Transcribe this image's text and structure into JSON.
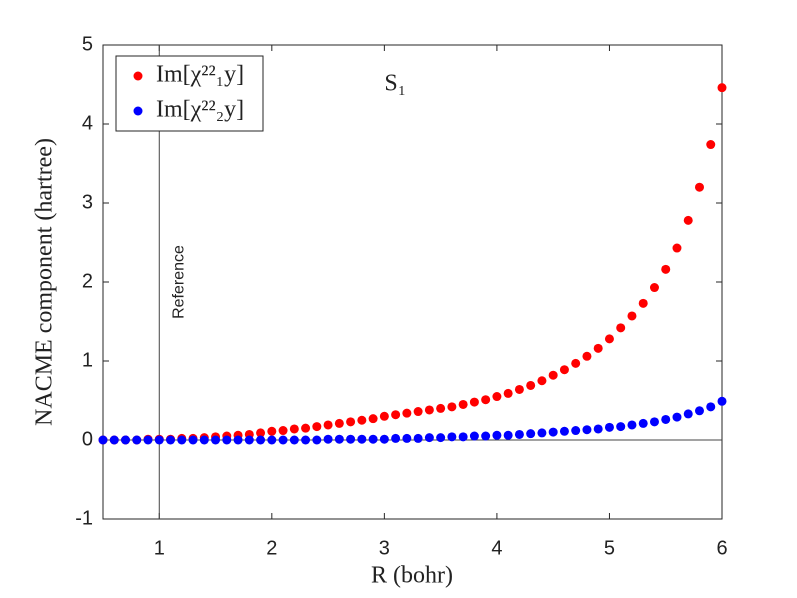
{
  "chart_data": {
    "type": "scatter",
    "xlabel": "R (bohr)",
    "ylabel": "NACME component (hartree)",
    "annotation": "S₁",
    "reference": {
      "x": 1,
      "label": "Reference"
    },
    "hline": 0,
    "xlim": [
      0.5,
      6
    ],
    "ylim": [
      -1,
      5
    ],
    "xticks": [
      1,
      2,
      3,
      4,
      5,
      6
    ],
    "yticks": [
      -1,
      0,
      1,
      2,
      3,
      4,
      5
    ],
    "legend": "upper left",
    "x": [
      0.5,
      0.6,
      0.7,
      0.8,
      0.9,
      1.0,
      1.1,
      1.2,
      1.3,
      1.4,
      1.5,
      1.6,
      1.7,
      1.8,
      1.9,
      2.0,
      2.1,
      2.2,
      2.3,
      2.4,
      2.5,
      2.6,
      2.7,
      2.8,
      2.9,
      3.0,
      3.1,
      3.2,
      3.3,
      3.4,
      3.5,
      3.6,
      3.7,
      3.8,
      3.9,
      4.0,
      4.1,
      4.2,
      4.3,
      4.4,
      4.5,
      4.6,
      4.7,
      4.8,
      4.9,
      5.0,
      5.1,
      5.2,
      5.3,
      5.4,
      5.5,
      5.6,
      5.7,
      5.8,
      5.9,
      6.0
    ],
    "series": [
      {
        "name": "Im[χ²²₁y]",
        "color": "#ff0000",
        "values": [
          0,
          0,
          0,
          0,
          0.01,
          0.01,
          0.01,
          0.02,
          0.02,
          0.03,
          0.04,
          0.05,
          0.06,
          0.07,
          0.09,
          0.11,
          0.12,
          0.14,
          0.15,
          0.17,
          0.19,
          0.21,
          0.23,
          0.25,
          0.27,
          0.3,
          0.32,
          0.34,
          0.36,
          0.38,
          0.4,
          0.42,
          0.45,
          0.48,
          0.51,
          0.55,
          0.59,
          0.64,
          0.69,
          0.75,
          0.82,
          0.89,
          0.97,
          1.06,
          1.16,
          1.28,
          1.42,
          1.57,
          1.73,
          1.93,
          2.16,
          2.43,
          2.78,
          3.2,
          3.74,
          4.46
        ]
      },
      {
        "name": "Im[χ²²₂y]",
        "color": "#0000ff",
        "values": [
          0,
          0,
          0,
          0,
          0,
          0,
          0,
          0,
          0,
          0,
          0,
          0,
          0,
          0,
          0,
          0,
          0,
          0,
          0,
          0,
          0.01,
          0.01,
          0.01,
          0.01,
          0.01,
          0.01,
          0.02,
          0.02,
          0.02,
          0.03,
          0.03,
          0.04,
          0.04,
          0.05,
          0.05,
          0.06,
          0.06,
          0.07,
          0.08,
          0.09,
          0.1,
          0.11,
          0.12,
          0.13,
          0.14,
          0.16,
          0.17,
          0.19,
          0.21,
          0.23,
          0.26,
          0.29,
          0.33,
          0.37,
          0.42,
          0.49
        ]
      }
    ]
  }
}
